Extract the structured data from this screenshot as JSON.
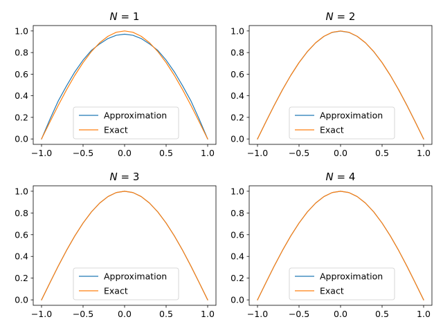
{
  "figure": {
    "legend_labels": {
      "approximation": "Approximation",
      "exact": "Exact"
    }
  },
  "chart_data": [
    {
      "type": "line",
      "title": "N = 1",
      "title_var": "N",
      "title_value": "1",
      "xlabel": "",
      "ylabel": "",
      "xlim": [
        -1.1,
        1.1
      ],
      "ylim": [
        -0.05,
        1.05
      ],
      "xticks": [
        -1.0,
        -0.5,
        0.0,
        0.5,
        1.0
      ],
      "xtick_labels": [
        "−1.0",
        "−0.5",
        "0.0",
        "0.5",
        "1.0"
      ],
      "yticks": [
        0.0,
        0.2,
        0.4,
        0.6,
        0.8,
        1.0
      ],
      "ytick_labels": [
        "0.0",
        "0.2",
        "0.4",
        "0.6",
        "0.8",
        "1.0"
      ],
      "grid": false,
      "legend": "lower-center",
      "series": [
        {
          "name": "Approximation",
          "color": "#1f77b4",
          "x": [
            -1.0,
            -0.9,
            -0.8,
            -0.7,
            -0.6,
            -0.5,
            -0.4,
            -0.3,
            -0.2,
            -0.1,
            0.0,
            0.1,
            0.2,
            0.3,
            0.4,
            0.5,
            0.6,
            0.7,
            0.8,
            0.9,
            1.0
          ],
          "y": [
            0.0,
            0.18,
            0.35,
            0.49,
            0.62,
            0.73,
            0.82,
            0.88,
            0.93,
            0.96,
            0.97,
            0.96,
            0.93,
            0.88,
            0.82,
            0.73,
            0.62,
            0.49,
            0.35,
            0.18,
            0.0
          ]
        },
        {
          "name": "Exact",
          "color": "#ff7f0e",
          "x": [
            -1.0,
            -0.9,
            -0.8,
            -0.7,
            -0.6,
            -0.5,
            -0.4,
            -0.3,
            -0.2,
            -0.1,
            0.0,
            0.1,
            0.2,
            0.3,
            0.4,
            0.5,
            0.6,
            0.7,
            0.8,
            0.9,
            1.0
          ],
          "y": [
            0.0,
            0.156,
            0.309,
            0.454,
            0.588,
            0.707,
            0.809,
            0.891,
            0.951,
            0.988,
            1.0,
            0.988,
            0.951,
            0.891,
            0.809,
            0.707,
            0.588,
            0.454,
            0.309,
            0.156,
            0.0
          ]
        }
      ]
    },
    {
      "type": "line",
      "title": "N = 2",
      "title_var": "N",
      "title_value": "2",
      "xlabel": "",
      "ylabel": "",
      "xlim": [
        -1.1,
        1.1
      ],
      "ylim": [
        -0.05,
        1.05
      ],
      "xticks": [
        -1.0,
        -0.5,
        0.0,
        0.5,
        1.0
      ],
      "xtick_labels": [
        "−1.0",
        "−0.5",
        "0.0",
        "0.5",
        "1.0"
      ],
      "yticks": [
        0.0,
        0.2,
        0.4,
        0.6,
        0.8,
        1.0
      ],
      "ytick_labels": [
        "0.0",
        "0.2",
        "0.4",
        "0.6",
        "0.8",
        "1.0"
      ],
      "grid": false,
      "legend": "lower-center",
      "series": [
        {
          "name": "Approximation",
          "color": "#1f77b4",
          "x": [
            -1.0,
            -0.9,
            -0.8,
            -0.7,
            -0.6,
            -0.5,
            -0.4,
            -0.3,
            -0.2,
            -0.1,
            0.0,
            0.1,
            0.2,
            0.3,
            0.4,
            0.5,
            0.6,
            0.7,
            0.8,
            0.9,
            1.0
          ],
          "y": [
            0.0,
            0.157,
            0.31,
            0.455,
            0.588,
            0.707,
            0.808,
            0.89,
            0.95,
            0.987,
            0.999,
            0.987,
            0.95,
            0.89,
            0.808,
            0.707,
            0.588,
            0.455,
            0.31,
            0.157,
            0.0
          ]
        },
        {
          "name": "Exact",
          "color": "#ff7f0e",
          "x": [
            -1.0,
            -0.9,
            -0.8,
            -0.7,
            -0.6,
            -0.5,
            -0.4,
            -0.3,
            -0.2,
            -0.1,
            0.0,
            0.1,
            0.2,
            0.3,
            0.4,
            0.5,
            0.6,
            0.7,
            0.8,
            0.9,
            1.0
          ],
          "y": [
            0.0,
            0.156,
            0.309,
            0.454,
            0.588,
            0.707,
            0.809,
            0.891,
            0.951,
            0.988,
            1.0,
            0.988,
            0.951,
            0.891,
            0.809,
            0.707,
            0.588,
            0.454,
            0.309,
            0.156,
            0.0
          ]
        }
      ]
    },
    {
      "type": "line",
      "title": "N = 3",
      "title_var": "N",
      "title_value": "3",
      "xlabel": "",
      "ylabel": "",
      "xlim": [
        -1.1,
        1.1
      ],
      "ylim": [
        -0.05,
        1.05
      ],
      "xticks": [
        -1.0,
        -0.5,
        0.0,
        0.5,
        1.0
      ],
      "xtick_labels": [
        "−1.0",
        "−0.5",
        "0.0",
        "0.5",
        "1.0"
      ],
      "yticks": [
        0.0,
        0.2,
        0.4,
        0.6,
        0.8,
        1.0
      ],
      "ytick_labels": [
        "0.0",
        "0.2",
        "0.4",
        "0.6",
        "0.8",
        "1.0"
      ],
      "grid": false,
      "legend": "lower-center",
      "series": [
        {
          "name": "Approximation",
          "color": "#1f77b4",
          "x": [
            -1.0,
            -0.9,
            -0.8,
            -0.7,
            -0.6,
            -0.5,
            -0.4,
            -0.3,
            -0.2,
            -0.1,
            0.0,
            0.1,
            0.2,
            0.3,
            0.4,
            0.5,
            0.6,
            0.7,
            0.8,
            0.9,
            1.0
          ],
          "y": [
            0.0,
            0.156,
            0.309,
            0.454,
            0.588,
            0.707,
            0.809,
            0.891,
            0.951,
            0.988,
            1.0,
            0.988,
            0.951,
            0.891,
            0.809,
            0.707,
            0.588,
            0.454,
            0.309,
            0.156,
            0.0
          ]
        },
        {
          "name": "Exact",
          "color": "#ff7f0e",
          "x": [
            -1.0,
            -0.9,
            -0.8,
            -0.7,
            -0.6,
            -0.5,
            -0.4,
            -0.3,
            -0.2,
            -0.1,
            0.0,
            0.1,
            0.2,
            0.3,
            0.4,
            0.5,
            0.6,
            0.7,
            0.8,
            0.9,
            1.0
          ],
          "y": [
            0.0,
            0.156,
            0.309,
            0.454,
            0.588,
            0.707,
            0.809,
            0.891,
            0.951,
            0.988,
            1.0,
            0.988,
            0.951,
            0.891,
            0.809,
            0.707,
            0.588,
            0.454,
            0.309,
            0.156,
            0.0
          ]
        }
      ]
    },
    {
      "type": "line",
      "title": "N = 4",
      "title_var": "N",
      "title_value": "4",
      "xlabel": "",
      "ylabel": "",
      "xlim": [
        -1.1,
        1.1
      ],
      "ylim": [
        -0.05,
        1.05
      ],
      "xticks": [
        -1.0,
        -0.5,
        0.0,
        0.5,
        1.0
      ],
      "xtick_labels": [
        "−1.0",
        "−0.5",
        "0.0",
        "0.5",
        "1.0"
      ],
      "yticks": [
        0.0,
        0.2,
        0.4,
        0.6,
        0.8,
        1.0
      ],
      "ytick_labels": [
        "0.0",
        "0.2",
        "0.4",
        "0.6",
        "0.8",
        "1.0"
      ],
      "grid": false,
      "legend": "lower-center",
      "series": [
        {
          "name": "Approximation",
          "color": "#1f77b4",
          "x": [
            -1.0,
            -0.9,
            -0.8,
            -0.7,
            -0.6,
            -0.5,
            -0.4,
            -0.3,
            -0.2,
            -0.1,
            0.0,
            0.1,
            0.2,
            0.3,
            0.4,
            0.5,
            0.6,
            0.7,
            0.8,
            0.9,
            1.0
          ],
          "y": [
            0.0,
            0.156,
            0.309,
            0.454,
            0.588,
            0.707,
            0.809,
            0.891,
            0.951,
            0.988,
            1.0,
            0.988,
            0.951,
            0.891,
            0.809,
            0.707,
            0.588,
            0.454,
            0.309,
            0.156,
            0.0
          ]
        },
        {
          "name": "Exact",
          "color": "#ff7f0e",
          "x": [
            -1.0,
            -0.9,
            -0.8,
            -0.7,
            -0.6,
            -0.5,
            -0.4,
            -0.3,
            -0.2,
            -0.1,
            0.0,
            0.1,
            0.2,
            0.3,
            0.4,
            0.5,
            0.6,
            0.7,
            0.8,
            0.9,
            1.0
          ],
          "y": [
            0.0,
            0.156,
            0.309,
            0.454,
            0.588,
            0.707,
            0.809,
            0.891,
            0.951,
            0.988,
            1.0,
            0.988,
            0.951,
            0.891,
            0.809,
            0.707,
            0.588,
            0.454,
            0.309,
            0.156,
            0.0
          ]
        }
      ]
    }
  ]
}
